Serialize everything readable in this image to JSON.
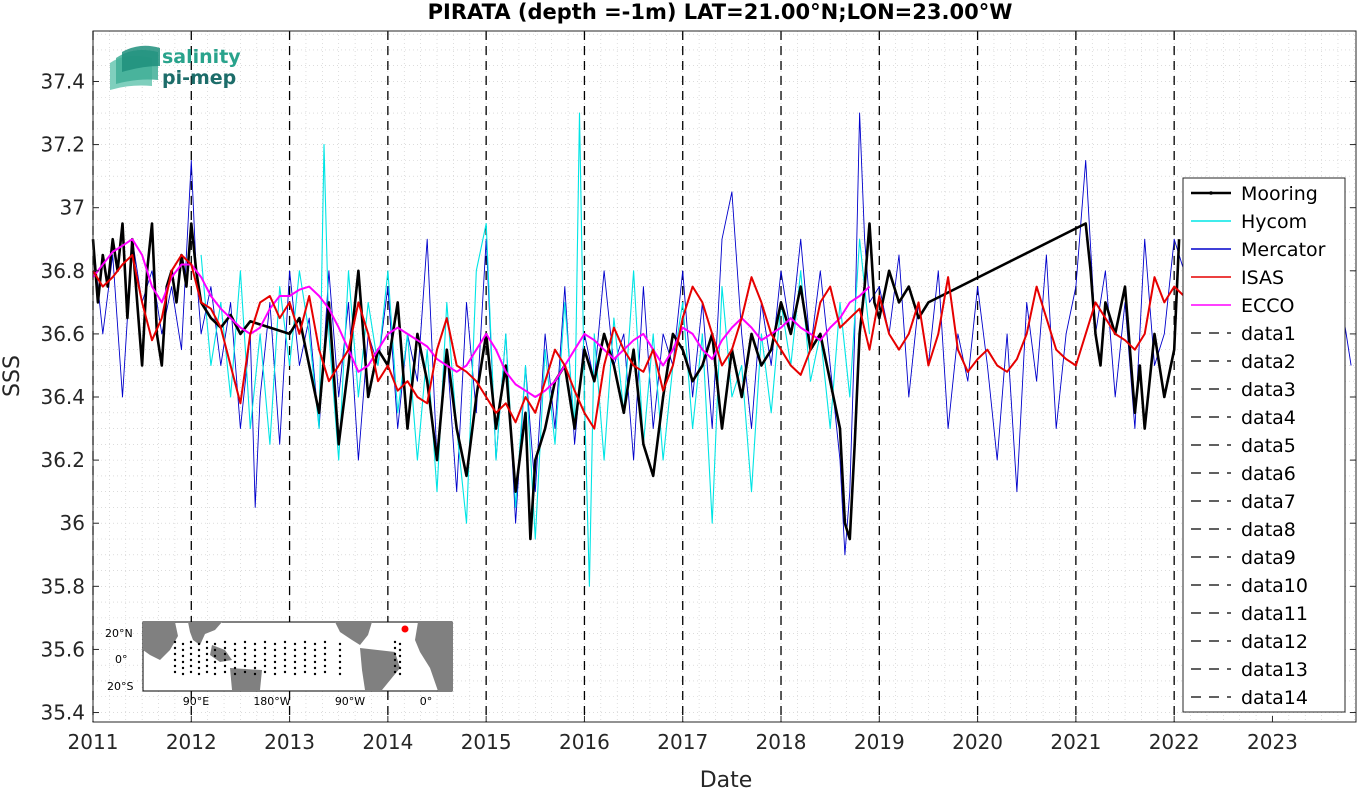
{
  "chart_data": {
    "type": "line",
    "title": "PIRATA (depth =-1m) LAT=21.00°N;LON=23.00°W",
    "xlabel": "Date",
    "ylabel": "SSS",
    "xlim": [
      2011.0,
      2023.85
    ],
    "ylim": [
      35.37,
      37.56
    ],
    "xticks": [
      "2011",
      "2012",
      "2013",
      "2014",
      "2015",
      "2016",
      "2017",
      "2018",
      "2019",
      "2020",
      "2021",
      "2022",
      "2023"
    ],
    "yticks": [
      "35.4",
      "35.6",
      "35.8",
      "36",
      "36.2",
      "36.4",
      "36.6",
      "36.8",
      "37",
      "37.2",
      "37.4"
    ],
    "grid": "minor dotted",
    "legend_position": "right",
    "series": [
      {
        "name": "Mooring",
        "color": "#000000",
        "x": [
          2011.0,
          2011.05,
          2011.1,
          2011.15,
          2011.2,
          2011.25,
          2011.3,
          2011.35,
          2011.4,
          2011.45,
          2011.5,
          2011.55,
          2011.6,
          2011.65,
          2011.7,
          2011.75,
          2011.8,
          2011.85,
          2011.9,
          2011.95,
          2012.0,
          2012.05,
          2012.1,
          2012.2,
          2012.3,
          2012.4,
          2012.5,
          2012.6,
          2013.0,
          2013.1,
          2013.2,
          2013.3,
          2013.4,
          2013.5,
          2013.6,
          2013.7,
          2013.8,
          2013.9,
          2014.0,
          2014.1,
          2014.2,
          2014.3,
          2014.4,
          2014.5,
          2014.6,
          2014.7,
          2014.8,
          2014.9,
          2015.0,
          2015.1,
          2015.2,
          2015.3,
          2015.4,
          2015.45,
          2015.5,
          2015.6,
          2015.7,
          2015.8,
          2015.9,
          2016.0,
          2016.1,
          2016.2,
          2016.3,
          2016.4,
          2016.5,
          2016.6,
          2016.7,
          2016.8,
          2016.9,
          2017.0,
          2017.1,
          2017.2,
          2017.3,
          2017.4,
          2017.5,
          2017.6,
          2017.7,
          2017.8,
          2017.9,
          2018.0,
          2018.1,
          2018.2,
          2018.3,
          2018.4,
          2018.5,
          2018.6,
          2018.65,
          2018.7,
          2018.75,
          2018.8,
          2018.85,
          2018.9,
          2018.95,
          2019.0,
          2019.1,
          2019.2,
          2019.3,
          2019.4,
          2019.5,
          2021.1,
          2021.15,
          2021.2,
          2021.25,
          2021.3,
          2021.4,
          2021.5,
          2021.6,
          2021.65,
          2021.7,
          2021.8,
          2021.9,
          2022.0,
          2022.05
        ],
        "y": [
          36.9,
          36.7,
          36.85,
          36.75,
          36.9,
          36.8,
          36.95,
          36.65,
          36.9,
          36.7,
          36.5,
          36.8,
          36.95,
          36.6,
          36.5,
          36.75,
          36.8,
          36.7,
          36.85,
          36.75,
          36.95,
          36.8,
          36.7,
          36.65,
          36.62,
          36.66,
          36.6,
          36.64,
          36.6,
          36.65,
          36.5,
          36.35,
          36.7,
          36.25,
          36.5,
          36.8,
          36.4,
          36.55,
          36.5,
          36.7,
          36.3,
          36.6,
          36.45,
          36.2,
          36.55,
          36.3,
          36.15,
          36.4,
          36.6,
          36.3,
          36.5,
          36.1,
          36.35,
          35.95,
          36.2,
          36.3,
          36.45,
          36.5,
          36.3,
          36.55,
          36.45,
          36.6,
          36.5,
          36.35,
          36.55,
          36.25,
          36.15,
          36.4,
          36.6,
          36.55,
          36.45,
          36.5,
          36.6,
          36.3,
          36.55,
          36.4,
          36.6,
          36.5,
          36.55,
          36.7,
          36.6,
          36.75,
          36.55,
          36.6,
          36.45,
          36.3,
          36.0,
          35.95,
          36.25,
          36.6,
          36.75,
          36.95,
          36.7,
          36.65,
          36.8,
          36.7,
          36.75,
          36.65,
          36.7,
          36.95,
          36.8,
          36.6,
          36.5,
          36.7,
          36.6,
          36.75,
          36.35,
          36.5,
          36.3,
          36.6,
          36.4,
          36.55,
          36.9
        ]
      },
      {
        "name": "Hycom",
        "color": "#00e5e5",
        "x": [
          2012.1,
          2012.2,
          2012.3,
          2012.4,
          2012.5,
          2012.6,
          2012.7,
          2012.8,
          2012.9,
          2013.0,
          2013.1,
          2013.2,
          2013.3,
          2013.35,
          2013.4,
          2013.5,
          2013.6,
          2013.7,
          2013.8,
          2013.9,
          2014.0,
          2014.1,
          2014.2,
          2014.3,
          2014.4,
          2014.5,
          2014.6,
          2014.7,
          2014.8,
          2014.9,
          2015.0,
          2015.1,
          2015.2,
          2015.3,
          2015.4,
          2015.5,
          2015.6,
          2015.7,
          2015.8,
          2015.9,
          2015.95,
          2016.0,
          2016.05,
          2016.1,
          2016.2,
          2016.3,
          2016.4,
          2016.5,
          2016.6,
          2016.7,
          2016.8,
          2016.9,
          2017.0,
          2017.1,
          2017.2,
          2017.3,
          2017.4,
          2017.5,
          2017.6,
          2017.7,
          2017.8,
          2017.9,
          2018.0,
          2018.1,
          2018.2,
          2018.3,
          2018.4,
          2018.5,
          2018.6,
          2018.7,
          2018.8,
          2018.9
        ],
        "y": [
          36.85,
          36.5,
          36.7,
          36.4,
          36.8,
          36.3,
          36.6,
          36.25,
          36.75,
          36.5,
          36.8,
          36.6,
          36.3,
          37.2,
          36.6,
          36.2,
          36.8,
          36.4,
          36.7,
          36.5,
          36.8,
          36.35,
          36.6,
          36.2,
          36.55,
          36.1,
          36.7,
          36.3,
          36.0,
          36.8,
          36.95,
          36.2,
          36.6,
          36.05,
          36.5,
          35.95,
          36.55,
          36.25,
          36.7,
          36.3,
          37.3,
          36.4,
          35.8,
          36.6,
          36.2,
          36.65,
          36.35,
          36.8,
          36.25,
          36.6,
          36.2,
          36.5,
          36.7,
          36.3,
          36.6,
          36.0,
          36.75,
          36.4,
          36.5,
          36.1,
          36.6,
          36.35,
          36.7,
          36.5,
          36.8,
          36.45,
          36.6,
          36.3,
          36.7,
          36.4,
          36.9,
          36.6
        ]
      },
      {
        "name": "Mercator",
        "color": "#0000cc",
        "x": [
          2011.0,
          2011.1,
          2011.2,
          2011.3,
          2011.4,
          2011.5,
          2011.6,
          2011.7,
          2011.8,
          2011.9,
          2012.0,
          2012.05,
          2012.1,
          2012.2,
          2012.3,
          2012.4,
          2012.5,
          2012.6,
          2012.65,
          2012.7,
          2012.8,
          2012.9,
          2013.0,
          2013.1,
          2013.2,
          2013.3,
          2013.4,
          2013.5,
          2013.6,
          2013.7,
          2013.8,
          2013.9,
          2014.0,
          2014.1,
          2014.2,
          2014.3,
          2014.4,
          2014.5,
          2014.6,
          2014.7,
          2014.8,
          2014.9,
          2015.0,
          2015.1,
          2015.2,
          2015.3,
          2015.4,
          2015.5,
          2015.6,
          2015.7,
          2015.8,
          2015.9,
          2016.0,
          2016.1,
          2016.2,
          2016.3,
          2016.4,
          2016.5,
          2016.6,
          2016.7,
          2016.8,
          2016.9,
          2017.0,
          2017.1,
          2017.2,
          2017.3,
          2017.4,
          2017.5,
          2017.6,
          2017.7,
          2017.8,
          2017.9,
          2018.0,
          2018.1,
          2018.2,
          2018.3,
          2018.4,
          2018.5,
          2018.6,
          2018.65,
          2018.7,
          2018.75,
          2018.8,
          2018.85,
          2018.9,
          2019.0,
          2019.1,
          2019.2,
          2019.3,
          2019.4,
          2019.5,
          2019.6,
          2019.7,
          2019.8,
          2019.9,
          2020.0,
          2020.1,
          2020.2,
          2020.3,
          2020.4,
          2020.5,
          2020.6,
          2020.7,
          2020.8,
          2020.9,
          2021.0,
          2021.1,
          2021.2,
          2021.3,
          2021.4,
          2021.5,
          2021.6,
          2021.7,
          2021.8,
          2021.9,
          2022.0,
          2022.1,
          2022.2,
          2022.3,
          2022.4,
          2022.5,
          2022.6,
          2022.7,
          2022.8,
          2022.9,
          2023.0,
          2023.1,
          2023.2,
          2023.3,
          2023.4,
          2023.5,
          2023.6,
          2023.7,
          2023.8
        ],
        "y": [
          36.9,
          36.6,
          36.85,
          36.4,
          36.9,
          36.7,
          36.8,
          36.6,
          36.75,
          36.55,
          37.15,
          36.8,
          36.6,
          36.75,
          36.5,
          36.7,
          36.3,
          36.6,
          36.05,
          36.4,
          36.7,
          36.25,
          36.8,
          36.5,
          36.65,
          36.3,
          36.8,
          36.4,
          36.7,
          36.2,
          36.6,
          36.5,
          36.75,
          36.3,
          36.6,
          36.45,
          36.9,
          36.2,
          36.55,
          36.1,
          36.7,
          36.35,
          36.9,
          36.2,
          36.6,
          36.0,
          36.5,
          36.1,
          36.6,
          36.3,
          36.75,
          36.25,
          36.6,
          36.45,
          36.8,
          36.5,
          36.6,
          36.2,
          36.75,
          36.3,
          36.6,
          36.5,
          36.8,
          36.4,
          36.7,
          36.3,
          36.9,
          37.05,
          36.6,
          36.3,
          36.7,
          36.5,
          36.8,
          36.6,
          36.9,
          36.55,
          36.8,
          36.5,
          36.2,
          35.9,
          36.1,
          36.6,
          37.3,
          36.9,
          36.7,
          36.75,
          36.6,
          36.85,
          36.4,
          36.7,
          36.5,
          36.8,
          36.3,
          36.6,
          36.45,
          36.75,
          36.5,
          36.2,
          36.6,
          36.1,
          36.7,
          36.45,
          36.85,
          36.3,
          36.6,
          36.75,
          37.15,
          36.6,
          36.8,
          36.4,
          36.7,
          36.3,
          36.9,
          36.5,
          36.6,
          36.9,
          36.8,
          36.6,
          36.75,
          36.45,
          36.8,
          36.2,
          36.7,
          36.55,
          36.85,
          36.35,
          36.6,
          36.8,
          36.4,
          36.7,
          36.3,
          36.6,
          36.7,
          36.5
        ],
        "note": ""
      },
      {
        "name": "ISAS",
        "color": "#e60000",
        "x": [
          2011.0,
          2011.1,
          2011.2,
          2011.3,
          2011.4,
          2011.5,
          2011.6,
          2011.7,
          2011.8,
          2011.9,
          2012.0,
          2012.1,
          2012.2,
          2012.3,
          2012.4,
          2012.5,
          2012.6,
          2012.7,
          2012.8,
          2012.9,
          2013.0,
          2013.1,
          2013.2,
          2013.3,
          2013.4,
          2013.5,
          2013.6,
          2013.7,
          2013.8,
          2013.9,
          2014.0,
          2014.1,
          2014.2,
          2014.3,
          2014.4,
          2014.5,
          2014.6,
          2014.7,
          2014.8,
          2014.9,
          2015.0,
          2015.1,
          2015.2,
          2015.3,
          2015.4,
          2015.5,
          2015.6,
          2015.7,
          2015.8,
          2015.9,
          2016.0,
          2016.1,
          2016.2,
          2016.3,
          2016.4,
          2016.5,
          2016.6,
          2016.7,
          2016.8,
          2016.9,
          2017.0,
          2017.1,
          2017.2,
          2017.3,
          2017.4,
          2017.5,
          2017.6,
          2017.7,
          2017.8,
          2017.9,
          2018.0,
          2018.1,
          2018.2,
          2018.3,
          2018.4,
          2018.5,
          2018.6,
          2018.7,
          2018.8,
          2018.9,
          2019.0,
          2019.1,
          2019.2,
          2019.3,
          2019.4,
          2019.5,
          2019.6,
          2019.7,
          2019.8,
          2019.9,
          2020.0,
          2020.1,
          2020.2,
          2020.3,
          2020.4,
          2020.5,
          2020.6,
          2020.7,
          2020.8,
          2020.9,
          2021.0,
          2021.1,
          2021.2,
          2021.3,
          2021.4,
          2021.5,
          2021.6,
          2021.7,
          2021.8,
          2021.9,
          2022.0,
          2022.1
        ],
        "y": [
          36.8,
          36.75,
          36.78,
          36.82,
          36.85,
          36.7,
          36.58,
          36.65,
          36.8,
          36.85,
          36.82,
          36.7,
          36.68,
          36.62,
          36.5,
          36.38,
          36.6,
          36.7,
          36.72,
          36.65,
          36.7,
          36.6,
          36.72,
          36.55,
          36.45,
          36.5,
          36.55,
          36.7,
          36.6,
          36.45,
          36.5,
          36.42,
          36.45,
          36.4,
          36.38,
          36.55,
          36.65,
          36.5,
          36.48,
          36.45,
          36.4,
          36.35,
          36.38,
          36.32,
          36.4,
          36.35,
          36.45,
          36.55,
          36.5,
          36.42,
          36.35,
          36.3,
          36.5,
          36.62,
          36.55,
          36.5,
          36.48,
          36.55,
          36.42,
          36.5,
          36.65,
          36.75,
          36.7,
          36.6,
          36.5,
          36.55,
          36.65,
          36.78,
          36.7,
          36.6,
          36.55,
          36.5,
          36.47,
          36.55,
          36.7,
          36.75,
          36.62,
          36.65,
          36.68,
          36.55,
          36.72,
          36.6,
          36.55,
          36.6,
          36.7,
          36.5,
          36.6,
          36.78,
          36.55,
          36.48,
          36.52,
          36.55,
          36.5,
          36.48,
          36.52,
          36.6,
          36.75,
          36.65,
          36.55,
          36.52,
          36.5,
          36.6,
          36.7,
          36.65,
          36.6,
          36.58,
          36.55,
          36.6,
          36.78,
          36.7,
          36.75,
          36.72
        ],
        "note": ""
      },
      {
        "name": "ECCO",
        "color": "#ff00ff",
        "x": [
          2011.0,
          2011.1,
          2011.2,
          2011.3,
          2011.4,
          2011.5,
          2011.6,
          2011.7,
          2011.8,
          2011.9,
          2012.0,
          2012.1,
          2012.2,
          2012.3,
          2012.4,
          2012.5,
          2012.6,
          2012.7,
          2012.8,
          2012.9,
          2013.0,
          2013.1,
          2013.2,
          2013.3,
          2013.4,
          2013.5,
          2013.6,
          2013.7,
          2013.8,
          2013.9,
          2014.0,
          2014.1,
          2014.2,
          2014.3,
          2014.4,
          2014.5,
          2014.6,
          2014.7,
          2014.8,
          2014.9,
          2015.0,
          2015.1,
          2015.2,
          2015.3,
          2015.4,
          2015.5,
          2015.6,
          2015.7,
          2015.8,
          2015.9,
          2016.0,
          2016.1,
          2016.2,
          2016.3,
          2016.4,
          2016.5,
          2016.6,
          2016.7,
          2016.8,
          2016.9,
          2017.0,
          2017.1,
          2017.2,
          2017.3,
          2017.4,
          2017.5,
          2017.6,
          2017.7,
          2017.8,
          2017.9,
          2018.0,
          2018.1,
          2018.2,
          2018.3,
          2018.4,
          2018.5,
          2018.6,
          2018.7,
          2018.8,
          2018.9
        ],
        "y": [
          36.78,
          36.82,
          36.86,
          36.88,
          36.9,
          36.85,
          36.75,
          36.7,
          36.78,
          36.82,
          36.82,
          36.78,
          36.72,
          36.68,
          36.65,
          36.62,
          36.6,
          36.62,
          36.68,
          36.72,
          36.72,
          36.74,
          36.75,
          36.72,
          36.68,
          36.62,
          36.55,
          36.48,
          36.5,
          36.55,
          36.6,
          36.62,
          36.6,
          36.58,
          36.56,
          36.52,
          36.5,
          36.48,
          36.5,
          36.55,
          36.6,
          36.55,
          36.48,
          36.44,
          36.42,
          36.4,
          36.42,
          36.45,
          36.5,
          36.55,
          36.6,
          36.58,
          36.55,
          36.52,
          36.55,
          36.58,
          36.6,
          36.55,
          36.5,
          36.55,
          36.62,
          36.6,
          36.55,
          36.52,
          36.58,
          36.62,
          36.65,
          36.62,
          36.58,
          36.6,
          36.62,
          36.65,
          36.62,
          36.6,
          36.58,
          36.62,
          36.65,
          36.7,
          36.72,
          36.75
        ],
        "note": ""
      }
    ],
    "vlines": [
      2011.0,
      2012.0,
      2013.0,
      2014.0,
      2015.0,
      2016.0,
      2017.0,
      2018.0,
      2019.0,
      2020.0,
      2021.0,
      2022.0
    ],
    "legend": [
      "Mooring",
      "Hycom",
      "Mercator",
      "ISAS",
      "ECCO",
      "data1",
      "data2",
      "data3",
      "data4",
      "data5",
      "data6",
      "data7",
      "data8",
      "data9",
      "data10",
      "data11",
      "data12",
      "data13",
      "data14"
    ]
  },
  "logo": {
    "line1": "salinity",
    "line2": "pi-mep"
  },
  "inset_map": {
    "lat_labels": [
      "20°N",
      "0°",
      "20°S"
    ],
    "lon_labels": [
      "90°E",
      "180°W",
      "90°W",
      "0°"
    ]
  }
}
